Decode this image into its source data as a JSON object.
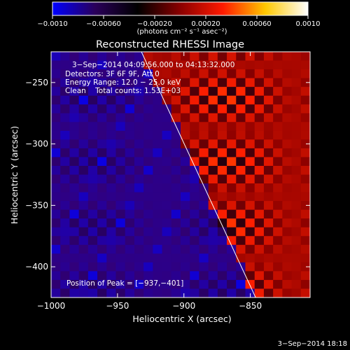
{
  "chart_data": {
    "type": "heatmap",
    "title": "Reconstructed RHESSI Image",
    "xlabel": "Heliocentric X (arcsec)",
    "ylabel": "Heliocentric Y (arcsec)",
    "xlim": [
      -1000,
      -805
    ],
    "ylim": [
      -425,
      -225
    ],
    "x_ticks": [
      -1000,
      -950,
      -900,
      -850
    ],
    "x_tick_labels": [
      "−1000",
      "−950",
      "−900",
      "−850"
    ],
    "y_ticks": [
      -400,
      -350,
      -300,
      -250
    ],
    "y_tick_labels": [
      "−400",
      "−350",
      "−300",
      "−250"
    ],
    "colorbar": {
      "range": [
        -0.001,
        0.001
      ],
      "tick_values": [
        -0.001,
        -0.0006,
        -0.0002,
        0.0002,
        0.0006,
        0.001
      ],
      "tick_labels": [
        "−0.0010",
        "−0.00060",
        "−0.00020",
        "0.00020",
        "0.00060",
        "0.0010"
      ],
      "unit_label": "(photons cm⁻² s⁻¹ asec⁻²)",
      "colors": [
        "#0000ff",
        "#2a005a",
        "#000000",
        "#8a0000",
        "#ff1a00",
        "#ffc800",
        "#ffffff"
      ]
    },
    "info_lines": [
      "3−Sep−2014 04:09:56.000 to 04:13:32.000",
      "Detectors: 3F 6F 9F, Att 0",
      "Energy Range: 12.0 − 25.0 keV",
      "Clean    Total counts: 1.53E+03"
    ],
    "peak_label": "Position of Peak = [−937,−401]",
    "peak_position": [
      -937,
      -401
    ],
    "limb_line": [
      [
        -932,
        -225
      ],
      [
        -846,
        -425
      ]
    ],
    "grid": false,
    "grid_shape": [
      28,
      28
    ]
  },
  "footer_timestamp": "3−Sep−2014 18:18"
}
